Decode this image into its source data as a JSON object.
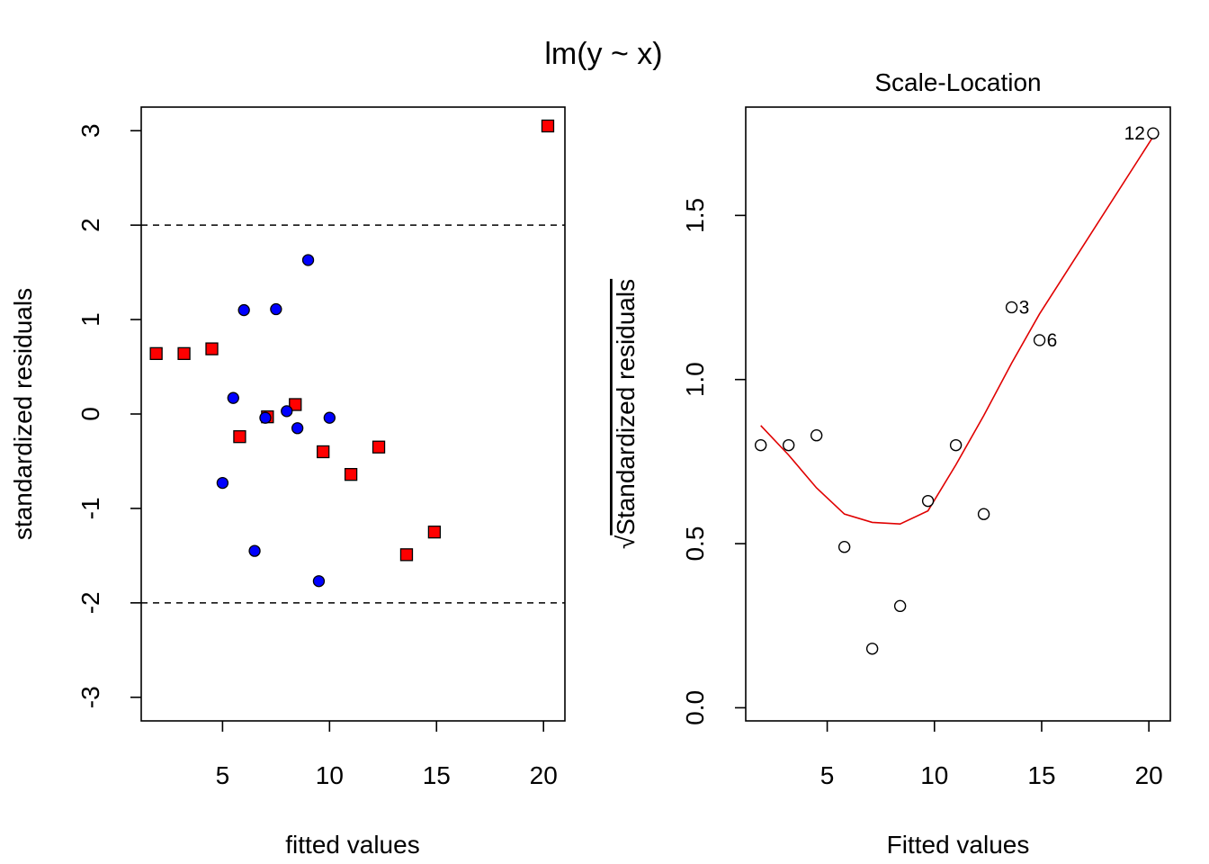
{
  "title": "lm(y ~ x)",
  "colors": {
    "regime_a": "#ff0000",
    "regime_b": "#0000ff",
    "smoother": "#e00000",
    "hollow": "#ffffff"
  },
  "chart_data": [
    {
      "type": "scatter",
      "title": "",
      "xlabel": "fitted values",
      "ylabel": "standardized residuals",
      "xlim": [
        1.2,
        21.0
      ],
      "ylim": [
        -3.25,
        3.25
      ],
      "xticks": [
        5,
        10,
        15,
        20
      ],
      "yticks": [
        -3,
        -2,
        -1,
        0,
        1,
        2,
        3
      ],
      "reference_lines": [
        2,
        -2
      ],
      "series": [
        {
          "name": "squares",
          "marker": "square",
          "color": "#ff0000",
          "x": [
            1.9,
            3.2,
            4.5,
            5.8,
            7.1,
            8.4,
            9.7,
            11.0,
            12.3,
            13.6,
            14.9,
            20.2
          ],
          "y": [
            0.64,
            0.64,
            0.69,
            -0.24,
            -0.03,
            0.1,
            -0.4,
            -0.64,
            -0.35,
            -1.49,
            -1.25,
            3.05
          ]
        },
        {
          "name": "circles",
          "marker": "circle",
          "color": "#0000ff",
          "x": [
            5.0,
            5.5,
            6.0,
            6.5,
            7.0,
            7.5,
            8.0,
            8.5,
            9.0,
            9.5,
            10.0
          ],
          "y": [
            -0.73,
            0.17,
            1.1,
            -1.45,
            -0.04,
            1.11,
            0.03,
            -0.15,
            1.63,
            -1.77,
            -0.04
          ]
        }
      ]
    },
    {
      "type": "scatter",
      "title": "Scale-Location",
      "xlabel": "Fitted values",
      "ylabel": "Standardized residuals",
      "ylabel_prefix": "√",
      "xlim": [
        1.2,
        21.0
      ],
      "ylim": [
        -0.04,
        1.83
      ],
      "xticks": [
        5,
        10,
        15,
        20
      ],
      "yticks": [
        0.0,
        0.5,
        1.0,
        1.5
      ],
      "ytick_labels": [
        "0.0",
        "0.5",
        "1.0",
        "1.5"
      ],
      "points": {
        "x": [
          1.9,
          3.2,
          4.5,
          5.8,
          7.1,
          8.4,
          9.7,
          11.0,
          12.3,
          13.6,
          14.9,
          20.2
        ],
        "y": [
          0.8,
          0.8,
          0.83,
          0.49,
          0.18,
          0.31,
          0.63,
          0.8,
          0.59,
          1.22,
          1.12,
          1.75
        ]
      },
      "labels": [
        {
          "text": "12",
          "x": 20.2,
          "y": 1.75,
          "side": "left"
        },
        {
          "text": "3",
          "x": 13.6,
          "y": 1.22,
          "side": "right"
        },
        {
          "text": "6",
          "x": 14.9,
          "y": 1.12,
          "side": "right"
        }
      ],
      "smoother": {
        "x": [
          1.9,
          3.2,
          4.5,
          5.8,
          7.1,
          8.4,
          9.7,
          11.0,
          12.3,
          13.6,
          14.9,
          20.2
        ],
        "y": [
          0.86,
          0.77,
          0.67,
          0.59,
          0.565,
          0.56,
          0.6,
          0.74,
          0.89,
          1.05,
          1.2,
          1.74
        ]
      }
    }
  ]
}
